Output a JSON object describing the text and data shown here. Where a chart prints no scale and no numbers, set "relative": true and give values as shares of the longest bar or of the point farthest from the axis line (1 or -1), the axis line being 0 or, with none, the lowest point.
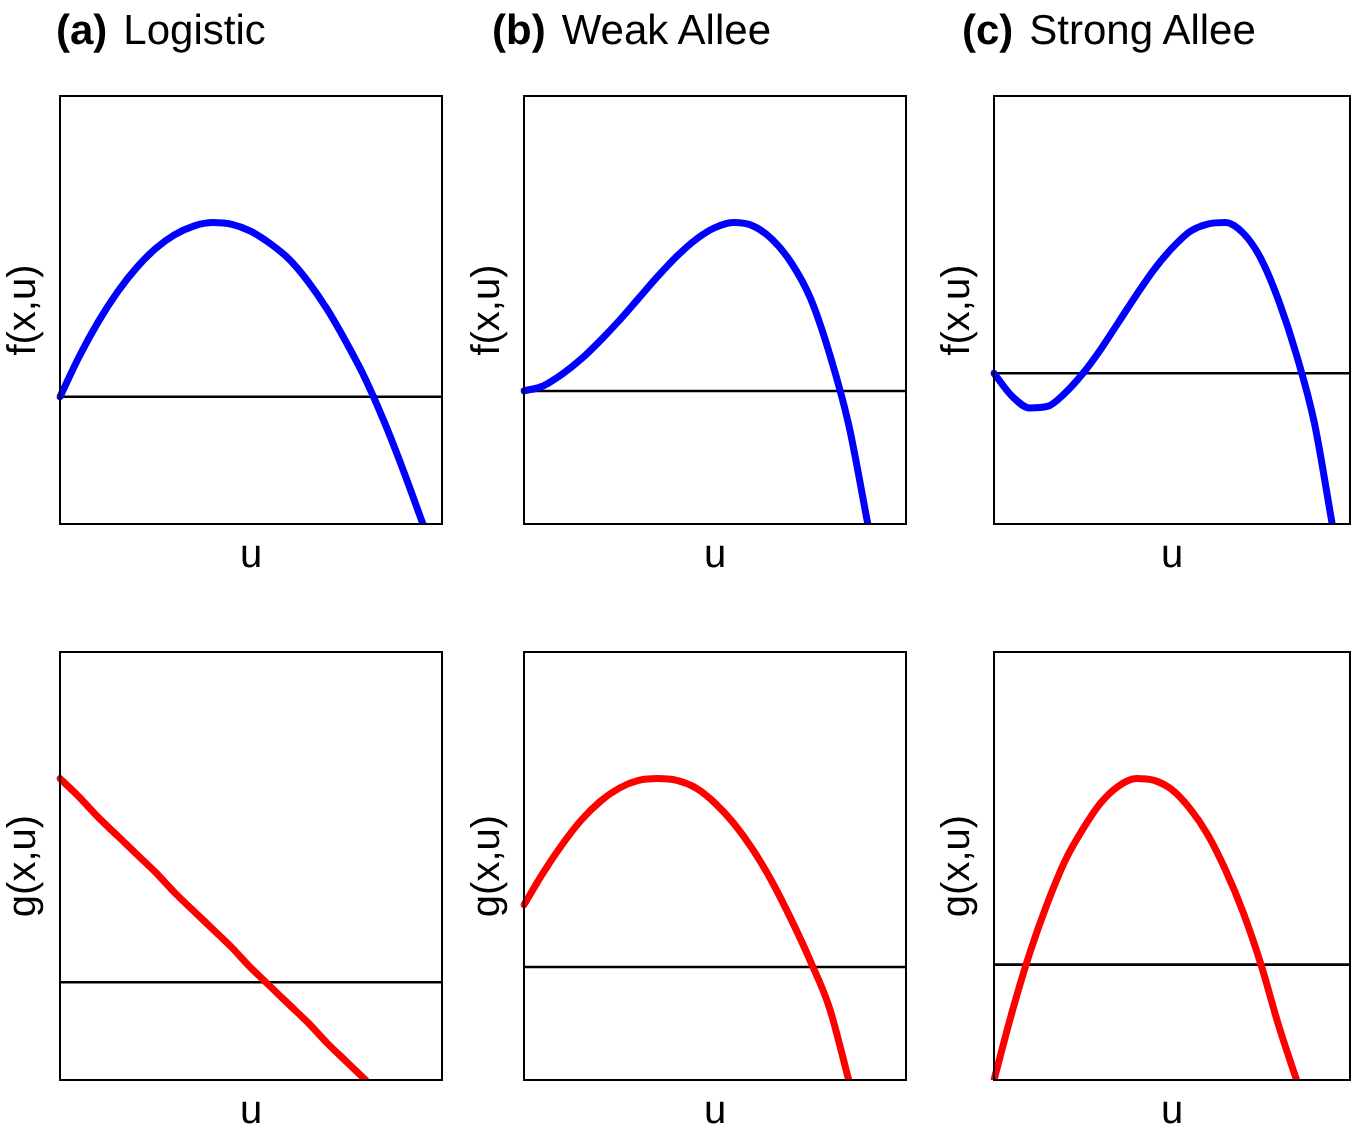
{
  "chart_data": [
    {
      "type": "line",
      "title": "(a) Logistic",
      "xlabel": "u",
      "ylabel": "f(x,u)",
      "relative": true,
      "tick_labels": false,
      "marker": "none",
      "categories": [
        null,
        null,
        null,
        null,
        null,
        null,
        null,
        null,
        null,
        null,
        null,
        null,
        null,
        null,
        null,
        null,
        null,
        null,
        null,
        null,
        null
      ],
      "series": [
        {
          "color": "#0000ff",
          "values": [
            0,
            0.23,
            0.43,
            0.6,
            0.74,
            0.85,
            0.93,
            0.98,
            1,
            0.99,
            0.95,
            0.88,
            0.79,
            0.66,
            0.5,
            0.31,
            0.1,
            -0.15,
            -0.43,
            -0.73,
            null
          ]
        }
      ],
      "ref_lines": [
        {
          "axis": "y",
          "value": 0,
          "color": "#000000"
        }
      ]
    },
    {
      "type": "line",
      "title": "(b) Weak Allee",
      "xlabel": "u",
      "ylabel": "f(x,u)",
      "relative": true,
      "tick_labels": false,
      "marker": "none",
      "categories": [
        null,
        null,
        null,
        null,
        null,
        null,
        null,
        null,
        null,
        null,
        null,
        null,
        null,
        null,
        null,
        null,
        null,
        null,
        null,
        null,
        null
      ],
      "series": [
        {
          "color": "#0000ff",
          "values": [
            0,
            0.03,
            0.1,
            0.19,
            0.3,
            0.42,
            0.55,
            0.68,
            0.8,
            0.9,
            0.97,
            1,
            0.98,
            0.9,
            0.76,
            0.55,
            0.22,
            -0.2,
            -0.79,
            null,
            null
          ]
        }
      ],
      "ref_lines": [
        {
          "axis": "y",
          "value": 0,
          "color": "#000000"
        }
      ]
    },
    {
      "type": "line",
      "title": "(c) Strong Allee",
      "xlabel": "u",
      "ylabel": "f(x,u)",
      "relative": true,
      "tick_labels": false,
      "marker": "none",
      "categories": [
        null,
        null,
        null,
        null,
        null,
        null,
        null,
        null,
        null,
        null,
        null,
        null,
        null,
        null,
        null,
        null,
        null,
        null,
        null,
        null,
        null
      ],
      "series": [
        {
          "color": "#0000ff",
          "values": [
            0,
            -0.15,
            -0.23,
            -0.22,
            -0.13,
            0,
            0.16,
            0.34,
            0.52,
            0.69,
            0.83,
            0.94,
            0.99,
            1,
            0.93,
            0.76,
            0.48,
            0.12,
            -0.33,
            -1,
            null
          ]
        }
      ],
      "ref_lines": [
        {
          "axis": "y",
          "value": 0,
          "color": "#000000"
        }
      ]
    },
    {
      "type": "line",
      "xlabel": "u",
      "ylabel": "g(x,u)",
      "relative": true,
      "tick_labels": false,
      "marker": "none",
      "categories": [
        null,
        null,
        null,
        null,
        null,
        null,
        null,
        null,
        null,
        null,
        null,
        null,
        null,
        null,
        null,
        null,
        null,
        null,
        null,
        null,
        null
      ],
      "series": [
        {
          "color": "#ff0000",
          "values": [
            1,
            0.91,
            0.81,
            0.72,
            0.63,
            0.54,
            0.44,
            0.35,
            0.26,
            0.17,
            0.07,
            -0.02,
            -0.11,
            -0.2,
            -0.3,
            -0.39,
            -0.48,
            null,
            null,
            null,
            null
          ]
        }
      ],
      "ref_lines": [
        {
          "axis": "y",
          "value": 0,
          "color": "#000000"
        }
      ]
    },
    {
      "type": "line",
      "xlabel": "u",
      "ylabel": "g(x,u)",
      "relative": true,
      "tick_labels": false,
      "marker": "none",
      "categories": [
        null,
        null,
        null,
        null,
        null,
        null,
        null,
        null,
        null,
        null,
        null,
        null,
        null,
        null,
        null,
        null,
        null,
        null,
        null,
        null,
        null
      ],
      "series": [
        {
          "color": "#ff0000",
          "values": [
            0.33,
            0.5,
            0.65,
            0.78,
            0.88,
            0.95,
            0.99,
            1,
            0.99,
            0.95,
            0.87,
            0.76,
            0.62,
            0.45,
            0.25,
            0.03,
            -0.22,
            -0.6,
            null,
            null,
            null
          ]
        }
      ],
      "ref_lines": [
        {
          "axis": "y",
          "value": 0,
          "color": "#000000"
        }
      ]
    },
    {
      "type": "line",
      "xlabel": "u",
      "ylabel": "g(x,u)",
      "relative": true,
      "tick_labels": false,
      "marker": "none",
      "categories": [
        null,
        null,
        null,
        null,
        null,
        null,
        null,
        null,
        null,
        null,
        null,
        null,
        null,
        null,
        null,
        null,
        null,
        null,
        null,
        null,
        null
      ],
      "series": [
        {
          "color": "#ff0000",
          "values": [
            -0.62,
            -0.26,
            0.06,
            0.33,
            0.56,
            0.73,
            0.87,
            0.96,
            1,
            0.99,
            0.94,
            0.84,
            0.7,
            0.51,
            0.28,
            0,
            -0.33,
            -0.62,
            null,
            null,
            null
          ]
        }
      ],
      "ref_lines": [
        {
          "axis": "y",
          "value": 0,
          "color": "#000000"
        }
      ]
    }
  ]
}
